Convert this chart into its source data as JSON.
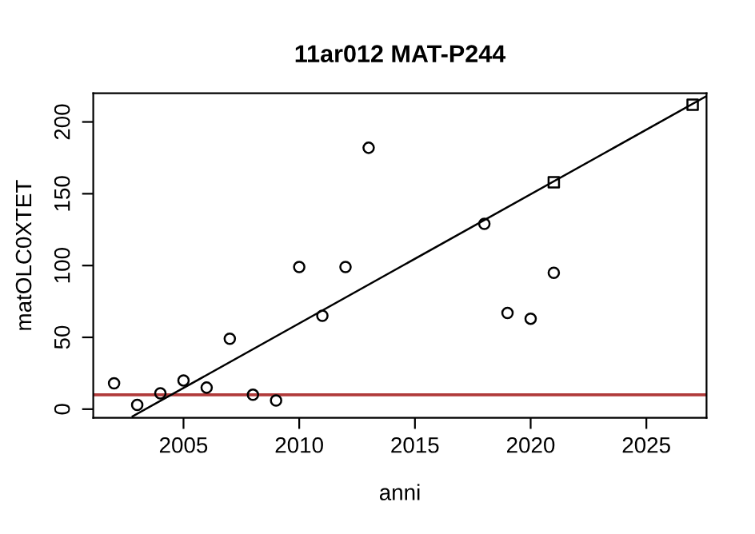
{
  "chart_data": {
    "type": "scatter",
    "title": "11ar012 MAT-P244",
    "xlabel": "anni",
    "ylabel": "matOLC0XTET",
    "series": [
      {
        "marker": "circle",
        "color": "#000000",
        "x": [
          2002,
          2003,
          2004,
          2005,
          2006,
          2007,
          2008,
          2009,
          2010,
          2011,
          2012,
          2013,
          2018,
          2019,
          2020,
          2021
        ],
        "values": [
          18,
          3,
          11,
          20,
          15,
          49,
          10,
          6,
          99,
          65,
          99,
          182,
          129,
          67,
          63,
          95
        ]
      },
      {
        "type": "scatter",
        "marker": "square",
        "color": "#000000",
        "x": [
          2021,
          2027
        ],
        "values": [
          158,
          212
        ]
      },
      {
        "type": "line",
        "marker": "none",
        "color": "#000000",
        "x": [
          2002.8,
          2027.6
        ],
        "values": [
          -5,
          218
        ]
      }
    ],
    "ref_lines": [
      {
        "axis": "y",
        "value": 10,
        "color": "#b03a3a"
      }
    ],
    "xlim": [
      2001.1,
      2027.6
    ],
    "ylim": [
      -6,
      220
    ],
    "xticks": [
      2005,
      2010,
      2015,
      2020,
      2025
    ],
    "yticks": [
      0,
      50,
      100,
      150,
      200
    ],
    "grid": false,
    "legend": false
  }
}
